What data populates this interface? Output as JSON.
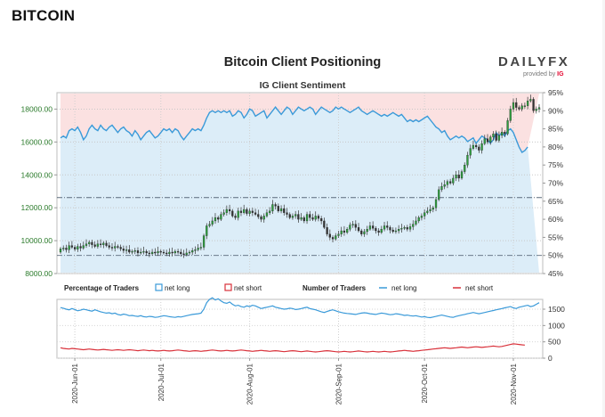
{
  "page": {
    "heading": "BITCOIN"
  },
  "branding": {
    "logo": "DAILYFX",
    "provided_by": "provided by",
    "provider": "IG"
  },
  "chart_data": [
    {
      "type": "candlestick",
      "title": "Bitcoin Client Positioning",
      "subtitle": "IG Client Sentiment",
      "left_axis": {
        "ticks": [
          "8000.00",
          "10000.00",
          "12000.00",
          "14000.00",
          "16000.00",
          "18000.00"
        ],
        "range": [
          8000,
          19000
        ]
      },
      "right_axis": {
        "ticks": [
          "45%",
          "50%",
          "55%",
          "60%",
          "65%",
          "70%",
          "75%",
          "80%",
          "85%",
          "90%",
          "95%"
        ],
        "range": [
          45,
          95
        ]
      },
      "x_ticks": [
        {
          "label": "2020-Jun-01",
          "index": 5
        },
        {
          "label": "2020-Jul-01",
          "index": 35
        },
        {
          "label": "2020-Aug-01",
          "index": 66
        },
        {
          "label": "2020-Sep-01",
          "index": 97
        },
        {
          "label": "2020-Oct-01",
          "index": 127
        },
        {
          "label": "2020-Nov-01",
          "index": 158
        }
      ],
      "price_close": [
        9500,
        9550,
        9450,
        9700,
        9600,
        9480,
        9650,
        9550,
        9700,
        9800,
        9900,
        9750,
        9650,
        9800,
        9750,
        9850,
        9700,
        9600,
        9550,
        9650,
        9600,
        9500,
        9400,
        9450,
        9300,
        9350,
        9400,
        9250,
        9300,
        9350,
        9250,
        9200,
        9300,
        9250,
        9350,
        9300,
        9250,
        9200,
        9300,
        9250,
        9350,
        9300,
        9200,
        9150,
        9250,
        9300,
        9400,
        9450,
        9550,
        9600,
        10300,
        10900,
        11000,
        11200,
        11400,
        11300,
        11600,
        11700,
        11900,
        11800,
        11500,
        11400,
        11800,
        11700,
        11900,
        11650,
        11800,
        11700,
        11600,
        11450,
        11300,
        11500,
        11700,
        11800,
        12200,
        12100,
        11800,
        11950,
        11700,
        11600,
        11400,
        11500,
        11600,
        11300,
        11400,
        11200,
        11600,
        11400,
        11300,
        11500,
        11350,
        11200,
        10800,
        10400,
        10200,
        10100,
        10300,
        10400,
        10600,
        10500,
        10700,
        10950,
        11000,
        10800,
        10600,
        10400,
        10550,
        10700,
        10900,
        10750,
        10600,
        10500,
        10700,
        10900,
        10800,
        10650,
        10550,
        10600,
        10700,
        10750,
        10800,
        10700,
        10850,
        11000,
        11200,
        11400,
        11500,
        11700,
        11800,
        11900,
        12000,
        12500,
        13100,
        13300,
        13400,
        13600,
        13500,
        13800,
        14000,
        13800,
        14200,
        14600,
        15200,
        15600,
        15800,
        15700,
        15500,
        15900,
        16200,
        16000,
        16300,
        16500,
        16100,
        16400,
        16600,
        16500,
        17300,
        18000,
        18400,
        18100,
        18000,
        18200,
        18200,
        18500,
        18600,
        17900,
        18000,
        18100
      ],
      "price_open": [
        9300,
        9500,
        9550,
        9450,
        9700,
        9600,
        9480,
        9650,
        9550,
        9700,
        9800,
        9900,
        9750,
        9650,
        9800,
        9750,
        9850,
        9700,
        9600,
        9550,
        9650,
        9600,
        9500,
        9400,
        9450,
        9300,
        9350,
        9400,
        9250,
        9300,
        9350,
        9250,
        9200,
        9300,
        9250,
        9350,
        9300,
        9250,
        9200,
        9300,
        9250,
        9350,
        9300,
        9200,
        9150,
        9250,
        9300,
        9400,
        9450,
        9550,
        9600,
        10300,
        10900,
        11000,
        11200,
        11400,
        11300,
        11600,
        11700,
        11900,
        11800,
        11500,
        11400,
        11800,
        11700,
        11900,
        11650,
        11800,
        11700,
        11600,
        11450,
        11300,
        11500,
        11700,
        11800,
        12200,
        12100,
        11800,
        11950,
        11700,
        11600,
        11400,
        11500,
        11600,
        11300,
        11400,
        11200,
        11600,
        11400,
        11300,
        11500,
        11350,
        11200,
        10800,
        10400,
        10200,
        10100,
        10300,
        10400,
        10600,
        10500,
        10700,
        10950,
        11000,
        10800,
        10600,
        10400,
        10550,
        10700,
        10900,
        10750,
        10600,
        10500,
        10700,
        10900,
        10800,
        10650,
        10550,
        10600,
        10700,
        10750,
        10800,
        10700,
        10850,
        11000,
        11200,
        11400,
        11500,
        11700,
        11800,
        11900,
        12000,
        12500,
        13100,
        13300,
        13400,
        13600,
        13500,
        13800,
        14000,
        13800,
        14200,
        14600,
        15200,
        15600,
        15800,
        15700,
        15500,
        15900,
        16200,
        16000,
        16300,
        16500,
        16100,
        16400,
        16600,
        16500,
        17300,
        18000,
        18400,
        18100,
        18000,
        18200,
        18200,
        18500,
        18600,
        17900,
        18000
      ],
      "net_long_pct": [
        82.5,
        83,
        82.5,
        84.5,
        85,
        84.5,
        85.5,
        84,
        82,
        83,
        85,
        86,
        85,
        84.5,
        86,
        85,
        84.5,
        85.5,
        86,
        85,
        84,
        85,
        85.5,
        84.5,
        84,
        83,
        84.5,
        83.5,
        82,
        83,
        84,
        84.5,
        83.5,
        82.5,
        83,
        84,
        85,
        84.5,
        85,
        84,
        85,
        84.5,
        83,
        82,
        83,
        84,
        85,
        84.5,
        85,
        84.5,
        86,
        88,
        89.5,
        90,
        89.5,
        90,
        89.5,
        90,
        89.5,
        90,
        88.5,
        89,
        90,
        89.5,
        88,
        89,
        90.5,
        90,
        88.5,
        89,
        89.5,
        90,
        88,
        89,
        90,
        91,
        90,
        89,
        90,
        91,
        90.5,
        89,
        90,
        91,
        90.5,
        90,
        90.5,
        91,
        90.5,
        89,
        90,
        91,
        90.5,
        90,
        89.5,
        90,
        91,
        90.5,
        91,
        90.5,
        90,
        89.5,
        90,
        90.5,
        91,
        90,
        89.5,
        89,
        89.5,
        90,
        89.5,
        89,
        88.5,
        89,
        88.5,
        89,
        89.5,
        89,
        88.5,
        89,
        88,
        87,
        87.5,
        87,
        87.5,
        87,
        87.5,
        88,
        88.5,
        87.5,
        86.5,
        85.5,
        85,
        84,
        84.5,
        83,
        82,
        82.5,
        83,
        82.5,
        83,
        82.5,
        81.5,
        82,
        82.5,
        81,
        82,
        83,
        82.5,
        82,
        81,
        82,
        84,
        83,
        84,
        83,
        84.5,
        85,
        84,
        82,
        80,
        78.5,
        79,
        80
      ],
      "traders_net_long": [
        1550,
        1530,
        1500,
        1480,
        1520,
        1490,
        1450,
        1470,
        1500,
        1480,
        1460,
        1440,
        1480,
        1450,
        1420,
        1400,
        1380,
        1390,
        1360,
        1380,
        1340,
        1320,
        1350,
        1330,
        1300,
        1310,
        1290,
        1280,
        1300,
        1270,
        1260,
        1280,
        1270,
        1250,
        1260,
        1280,
        1300,
        1290,
        1270,
        1260,
        1250,
        1270,
        1260,
        1280,
        1300,
        1320,
        1340,
        1350,
        1360,
        1380,
        1500,
        1700,
        1800,
        1850,
        1780,
        1820,
        1750,
        1700,
        1680,
        1720,
        1650,
        1600,
        1620,
        1580,
        1560,
        1600,
        1580,
        1620,
        1600,
        1560,
        1520,
        1540,
        1560,
        1580,
        1600,
        1560,
        1540,
        1520,
        1500,
        1510,
        1530,
        1520,
        1490,
        1500,
        1520,
        1540,
        1560,
        1520,
        1500,
        1480,
        1450,
        1420,
        1400,
        1430,
        1460,
        1480,
        1450,
        1420,
        1400,
        1380,
        1370,
        1360,
        1350,
        1340,
        1360,
        1380,
        1390,
        1380,
        1360,
        1350,
        1340,
        1360,
        1380,
        1370,
        1350,
        1330,
        1340,
        1360,
        1350,
        1330,
        1310,
        1320,
        1300,
        1290,
        1300,
        1280,
        1260,
        1270,
        1250,
        1240,
        1260,
        1280,
        1300,
        1320,
        1300,
        1280,
        1260,
        1250,
        1280,
        1300,
        1320,
        1340,
        1360,
        1380,
        1400,
        1380,
        1360,
        1380,
        1400,
        1420,
        1440,
        1460,
        1480,
        1500,
        1520,
        1540,
        1560,
        1580,
        1540,
        1520,
        1560,
        1580,
        1600,
        1620,
        1580,
        1600,
        1650,
        1700
      ],
      "traders_net_short": [
        320,
        300,
        290,
        280,
        300,
        290,
        280,
        270,
        260,
        270,
        280,
        270,
        260,
        250,
        260,
        270,
        260,
        250,
        240,
        250,
        260,
        250,
        240,
        250,
        260,
        250,
        240,
        230,
        240,
        250,
        240,
        230,
        240,
        230,
        220,
        230,
        240,
        230,
        220,
        230,
        240,
        250,
        240,
        230,
        220,
        210,
        220,
        230,
        220,
        210,
        220,
        230,
        240,
        250,
        240,
        230,
        220,
        230,
        240,
        230,
        220,
        230,
        240,
        250,
        240,
        230,
        220,
        210,
        220,
        230,
        240,
        230,
        220,
        210,
        220,
        230,
        220,
        210,
        200,
        210,
        220,
        230,
        220,
        210,
        200,
        210,
        220,
        210,
        200,
        190,
        200,
        210,
        220,
        230,
        220,
        210,
        200,
        190,
        200,
        210,
        200,
        190,
        200,
        210,
        220,
        210,
        200,
        190,
        200,
        210,
        200,
        190,
        200,
        210,
        200,
        190,
        200,
        210,
        220,
        230,
        240,
        230,
        220,
        210,
        220,
        230,
        240,
        250,
        260,
        270,
        280,
        290,
        300,
        310,
        320,
        310,
        300,
        310,
        320,
        330,
        340,
        330,
        320,
        330,
        340,
        350,
        340,
        330,
        340,
        350,
        360,
        370,
        360,
        350,
        360,
        380,
        400,
        420,
        440,
        430,
        420,
        410,
        400
      ],
      "lower_axis": {
        "ticks": [
          "0",
          "500",
          "1000",
          "1500"
        ],
        "range": [
          0,
          1800
        ]
      },
      "reference_lines": {
        "upper_pct": 66,
        "lower_pct": 50,
        "price_guide": 12600
      },
      "legend": {
        "percentage_title": "Percentage of Traders",
        "number_title": "Number of Traders",
        "net_long": "net long",
        "net_short": "net short"
      },
      "colors": {
        "long_fill": "#dcedf8",
        "short_fill": "#fbe1e1",
        "long_line": "#3a9ad9",
        "short_line": "#d9313a",
        "candle_up": "#2e9e3e",
        "candle_down": "#333333",
        "axis_green": "#2a7a2a"
      }
    }
  ]
}
